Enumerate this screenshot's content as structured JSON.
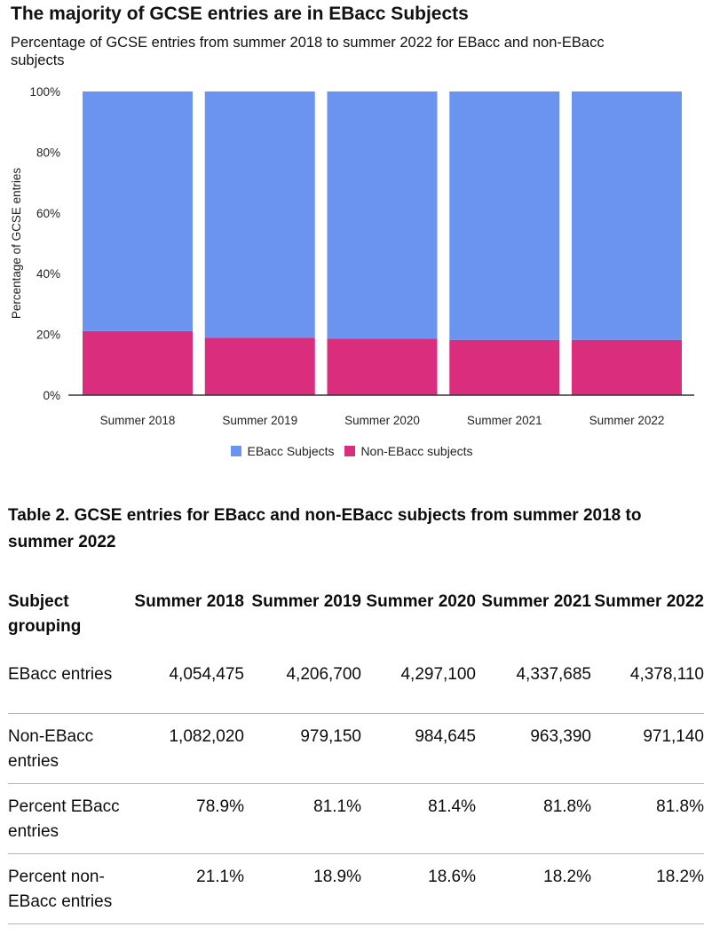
{
  "page_title": "The majority of GCSE entries are in EBacc Subjects",
  "page_subtitle": "Percentage of GCSE entries from summer 2018 to summer 2022 for EBacc and non-EBacc subjects",
  "chart_data": {
    "type": "bar",
    "stacked": true,
    "title": "The majority of GCSE entries are in EBacc Subjects",
    "subtitle": "Percentage of GCSE entries from summer 2018 to summer 2022 for EBacc and non-EBacc subjects",
    "xlabel": "",
    "ylabel": "Percentage of GCSE entries",
    "categories": [
      "Summer 2018",
      "Summer 2019",
      "Summer 2020",
      "Summer 2021",
      "Summer 2022"
    ],
    "series": [
      {
        "name": "EBacc Subjects",
        "color": "#6b93f0",
        "values": [
          78.9,
          81.1,
          81.4,
          81.8,
          81.8
        ]
      },
      {
        "name": "Non-EBacc subjects",
        "color": "#db2d7e",
        "values": [
          21.1,
          18.9,
          18.6,
          18.2,
          18.2
        ]
      }
    ],
    "stack_order_bottom_to_top": [
      "Non-EBacc subjects",
      "EBacc Subjects"
    ],
    "ylim": [
      0,
      100
    ],
    "yticks": [
      "0%",
      "20%",
      "40%",
      "60%",
      "80%",
      "100%"
    ],
    "ytick_values": [
      0,
      20,
      40,
      60,
      80,
      100
    ],
    "grid": false,
    "legend_position": "bottom"
  },
  "table": {
    "caption": "Table 2. GCSE entries for EBacc and non-EBacc subjects from summer 2018 to summer 2022",
    "headers": [
      "Subject grouping",
      "Summer 2018",
      "Summer 2019",
      "Summer 2020",
      "Summer 2021",
      "Summer 2022"
    ],
    "rows": [
      [
        "EBacc entries",
        "4,054,475",
        "4,206,700",
        "4,297,100",
        "4,337,685",
        "4,378,110"
      ],
      [
        "Non-EBacc entries",
        "1,082,020",
        "979,150",
        "984,645",
        "963,390",
        "971,140"
      ],
      [
        "Percent EBacc entries",
        "78.9%",
        "81.1%",
        "81.4%",
        "81.8%",
        "81.8%"
      ],
      [
        "Percent non-EBacc entries",
        "21.1%",
        "18.9%",
        "18.6%",
        "18.2%",
        "18.2%"
      ]
    ]
  }
}
